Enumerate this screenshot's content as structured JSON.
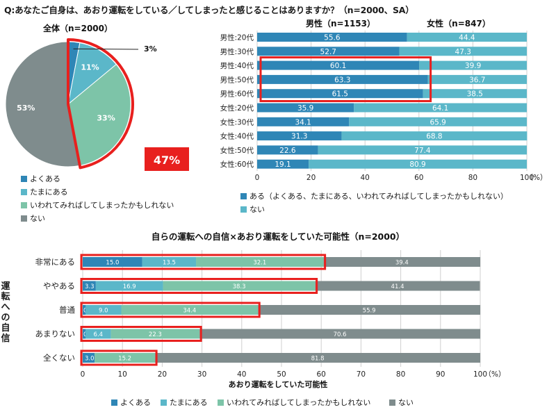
{
  "question": "Q:あなたご自身は、あおり運転をしている／してしまったと感じることはありますか？（n=2000、SA）",
  "colors": {
    "yokuaru": "#2f86b6",
    "tamani": "#5bb7c9",
    "iwarete": "#7dc4a8",
    "nai": "#7f8c8d",
    "aru_total": "#2f86b6",
    "highlight": "#e8201e"
  },
  "chart_data": [
    {
      "type": "pie",
      "title": "全体（n=2000）",
      "categories": [
        "よくある",
        "たまにある",
        "いわれてみればしてしまったかもしれない",
        "ない"
      ],
      "values": [
        3,
        11,
        33,
        53
      ],
      "labels": [
        "3%",
        "11%",
        "33%",
        "53%"
      ],
      "callout": "47%"
    },
    {
      "type": "bar",
      "orientation": "horizontal",
      "stacked": true,
      "categories": [
        "男性:20代",
        "男性:30代",
        "男性:40代",
        "男性:50代",
        "男性:60代",
        "女性:20代",
        "女性:30代",
        "女性:40代",
        "女性:50代",
        "女性:60代"
      ],
      "series": [
        {
          "name": "ある（よくある、たまにある、いわれてみればしてしまったかもしれない）",
          "values": [
            55.6,
            52.7,
            60.1,
            63.3,
            61.5,
            35.9,
            34.1,
            31.3,
            22.6,
            19.1
          ]
        },
        {
          "name": "ない",
          "values": [
            44.4,
            47.3,
            39.9,
            36.7,
            38.5,
            64.1,
            65.9,
            68.8,
            77.4,
            80.9
          ]
        }
      ],
      "group_labels": [
        "男性（n=1153）",
        "女性（n=847）"
      ],
      "xlim": [
        0,
        100
      ],
      "xticks": [
        "0",
        "20",
        "40",
        "60",
        "80",
        "100"
      ],
      "unit": "（%）",
      "grid": true,
      "legend": "bottom"
    },
    {
      "type": "bar",
      "orientation": "horizontal",
      "stacked": true,
      "title": "自らの運転への自信×あおり運転をしていた可能性（n=2000）",
      "ylabel": "運転への自信",
      "xlabel": "あおり運転をしていた可能性",
      "categories": [
        "非常にある",
        "ややある",
        "普通",
        "あまりない",
        "全くない"
      ],
      "series": [
        {
          "name": "よくある",
          "values": [
            15.0,
            3.3,
            0.7,
            0.7,
            3.0
          ]
        },
        {
          "name": "たまにある",
          "values": [
            13.5,
            16.9,
            9.0,
            6.4,
            0.0
          ]
        },
        {
          "name": "いわれてみればしてしまったかもしれない",
          "values": [
            32.1,
            38.3,
            34.4,
            22.3,
            15.2
          ]
        },
        {
          "name": "ない",
          "values": [
            39.4,
            41.4,
            55.9,
            70.6,
            81.8
          ]
        }
      ],
      "value_labels": [
        [
          "15.0",
          "13.5",
          "32.1",
          "39.4"
        ],
        [
          "3.3",
          "16.9",
          "38.3",
          "41.4"
        ],
        [
          "0.7",
          "9.0",
          "34.4",
          "55.9"
        ],
        [
          "0.7",
          "6.4",
          "22.3",
          "70.6"
        ],
        [
          "3.0",
          "",
          "15.2",
          "81.8"
        ]
      ],
      "xlim": [
        0,
        100
      ],
      "xticks": [
        "0",
        "10",
        "20",
        "30",
        "40",
        "50",
        "60",
        "70",
        "80",
        "90",
        "100"
      ],
      "unit": "（%）",
      "grid": true,
      "legend": "bottom"
    }
  ]
}
